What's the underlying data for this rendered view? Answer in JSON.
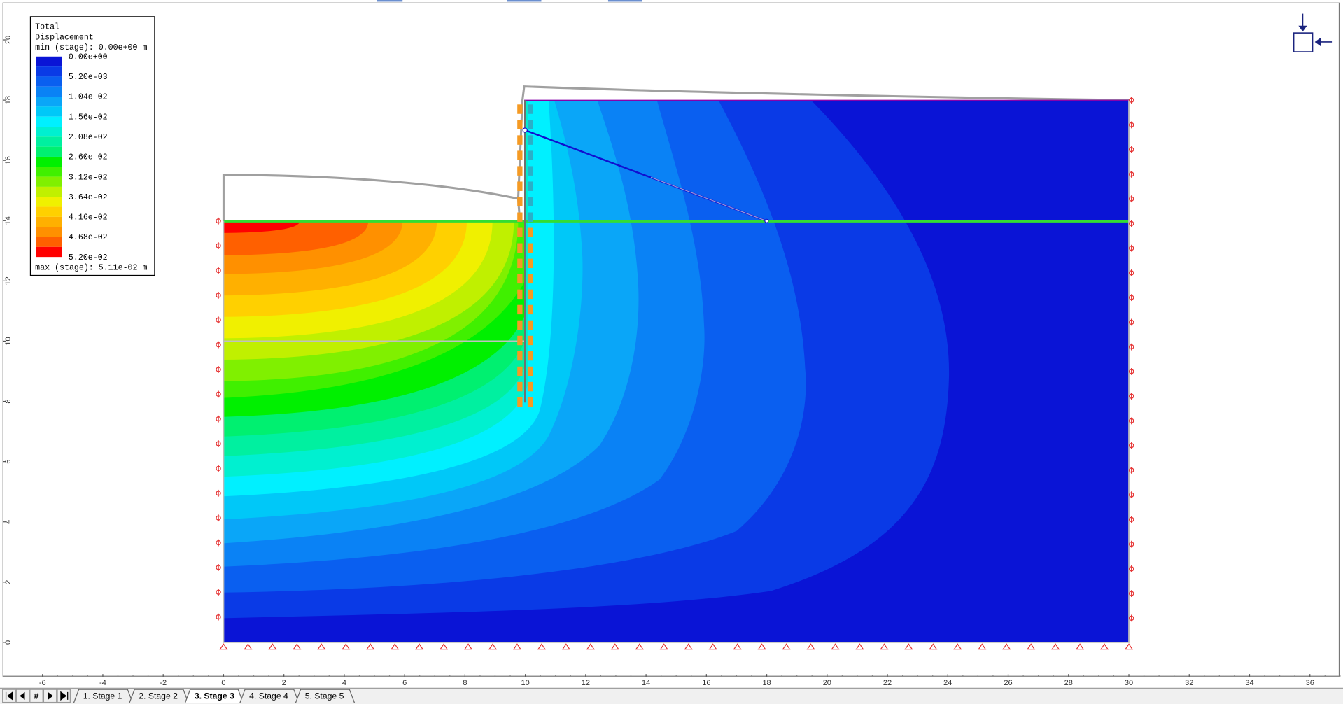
{
  "legend": {
    "title": [
      "Total",
      "Displacement"
    ],
    "min_label": "min (stage): 0.00e+00 m",
    "values": [
      "0.00e+00",
      "5.20e-03",
      "1.04e-02",
      "1.56e-02",
      "2.08e-02",
      "2.60e-02",
      "3.12e-02",
      "3.64e-02",
      "4.16e-02",
      "4.68e-02",
      "5.20e-02"
    ],
    "max_label": "max (stage): 5.11e-02 m",
    "colors": [
      "#0a14d6",
      "#0a3ae6",
      "#0a5ff0",
      "#0a82f5",
      "#0aa6f8",
      "#00c8f8",
      "#00f0ff",
      "#00f0d0",
      "#00f0a0",
      "#00f070",
      "#00f000",
      "#40f000",
      "#80f000",
      "#c0f000",
      "#f0f000",
      "#ffd000",
      "#ffb000",
      "#ff9000",
      "#ff6000",
      "#ff0000"
    ]
  },
  "axes": {
    "xticks": [
      -6,
      -4,
      -2,
      0,
      2,
      4,
      6,
      8,
      10,
      12,
      14,
      16,
      18,
      20,
      22,
      24,
      26,
      28,
      30,
      32,
      34,
      36
    ],
    "yticks": [
      0,
      2,
      4,
      6,
      8,
      10,
      12,
      14,
      16,
      18,
      20
    ]
  },
  "navigation": {
    "page_button": "#"
  },
  "tabs": [
    "1. Stage 1",
    "2. Stage 2",
    "3. Stage 3",
    "4. Stage 4",
    "5. Stage 5"
  ],
  "active_tab": 2
}
